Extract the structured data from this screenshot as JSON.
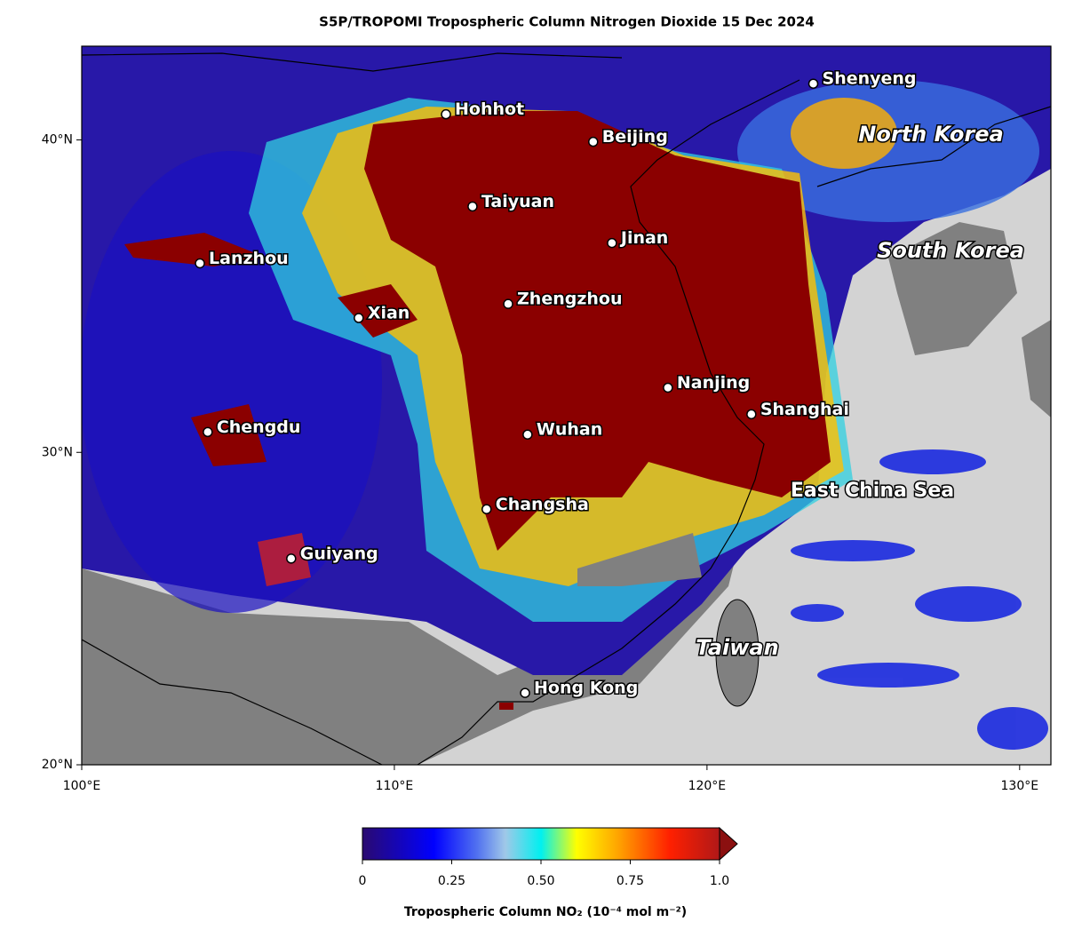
{
  "title": "S5P/TROPOMI Tropospheric Column Nitrogen Dioxide  15 Dec 2024",
  "map": {
    "xlim": [
      100,
      131
    ],
    "ylim": [
      20,
      43
    ],
    "xticks": [
      {
        "value": 100,
        "label": "100°E"
      },
      {
        "value": 110,
        "label": "110°E"
      },
      {
        "value": 120,
        "label": "120°E"
      },
      {
        "value": 130,
        "label": "130°E"
      }
    ],
    "yticks": [
      {
        "value": 20,
        "label": "20°N"
      },
      {
        "value": 30,
        "label": "30°N"
      },
      {
        "value": 40,
        "label": "40°N"
      }
    ],
    "cities": [
      {
        "name": "Shenyeng",
        "lon": 123.4,
        "lat": 41.8
      },
      {
        "name": "Hohhot",
        "lon": 111.65,
        "lat": 40.82
      },
      {
        "name": "Beijing",
        "lon": 116.36,
        "lat": 39.94
      },
      {
        "name": "Taiyuan",
        "lon": 112.5,
        "lat": 37.87
      },
      {
        "name": "Jinan",
        "lon": 116.96,
        "lat": 36.7
      },
      {
        "name": "Lanzhou",
        "lon": 103.78,
        "lat": 36.05
      },
      {
        "name": "Zhengzhou",
        "lon": 113.64,
        "lat": 34.75
      },
      {
        "name": "Xian",
        "lon": 108.86,
        "lat": 34.3
      },
      {
        "name": "Nanjing",
        "lon": 118.75,
        "lat": 32.07
      },
      {
        "name": "Shanghai",
        "lon": 121.42,
        "lat": 31.22
      },
      {
        "name": "Chengdu",
        "lon": 104.03,
        "lat": 30.65
      },
      {
        "name": "Wuhan",
        "lon": 114.26,
        "lat": 30.57
      },
      {
        "name": "Changsha",
        "lon": 112.95,
        "lat": 28.18
      },
      {
        "name": "Guiyang",
        "lon": 106.7,
        "lat": 26.6
      },
      {
        "name": "Hong Kong",
        "lon": 114.18,
        "lat": 22.3
      }
    ],
    "regions": [
      "North Korea",
      "South Korea",
      "East China Sea",
      "Taiwan"
    ]
  },
  "colorbar": {
    "label": "Tropospheric Column NO₂ (10⁻⁴ mol m⁻²)",
    "lim": [
      0,
      1
    ],
    "ticks": [
      0,
      0.25,
      {
        "value": 0.5,
        "label": "0.50"
      },
      0.75,
      {
        "value": 1,
        "label": "1.0"
      }
    ]
  }
}
